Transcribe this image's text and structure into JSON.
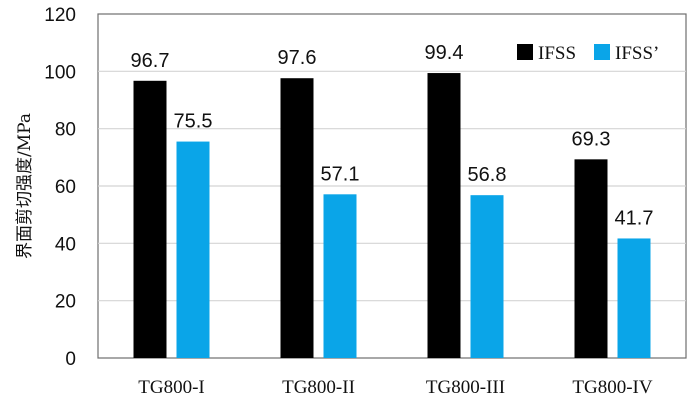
{
  "chart_data": {
    "type": "bar",
    "title": "",
    "xlabel": "",
    "ylabel": "界面剪切强度/MPa",
    "categories": [
      "TG800-I",
      "TG800-II",
      "TG800-III",
      "TG800-IV"
    ],
    "series": [
      {
        "name": "IFSS",
        "color": "#000000",
        "values": [
          96.7,
          97.6,
          99.4,
          69.3
        ],
        "labels": [
          "96.7",
          "97.6",
          "99.4",
          "69.3"
        ]
      },
      {
        "name": "IFSS’",
        "color": "#0aa5e8",
        "values": [
          75.5,
          57.1,
          56.8,
          41.7
        ],
        "labels": [
          "75.5",
          "57.1",
          "56.8",
          "41.7"
        ]
      }
    ],
    "ylim": [
      0,
      120
    ],
    "yticks": [
      0,
      20,
      40,
      60,
      80,
      100,
      120
    ],
    "ytick_labels": [
      "0",
      "20",
      "40",
      "60",
      "80",
      "100",
      "120"
    ],
    "grid": true,
    "legend_position": "top-right"
  }
}
